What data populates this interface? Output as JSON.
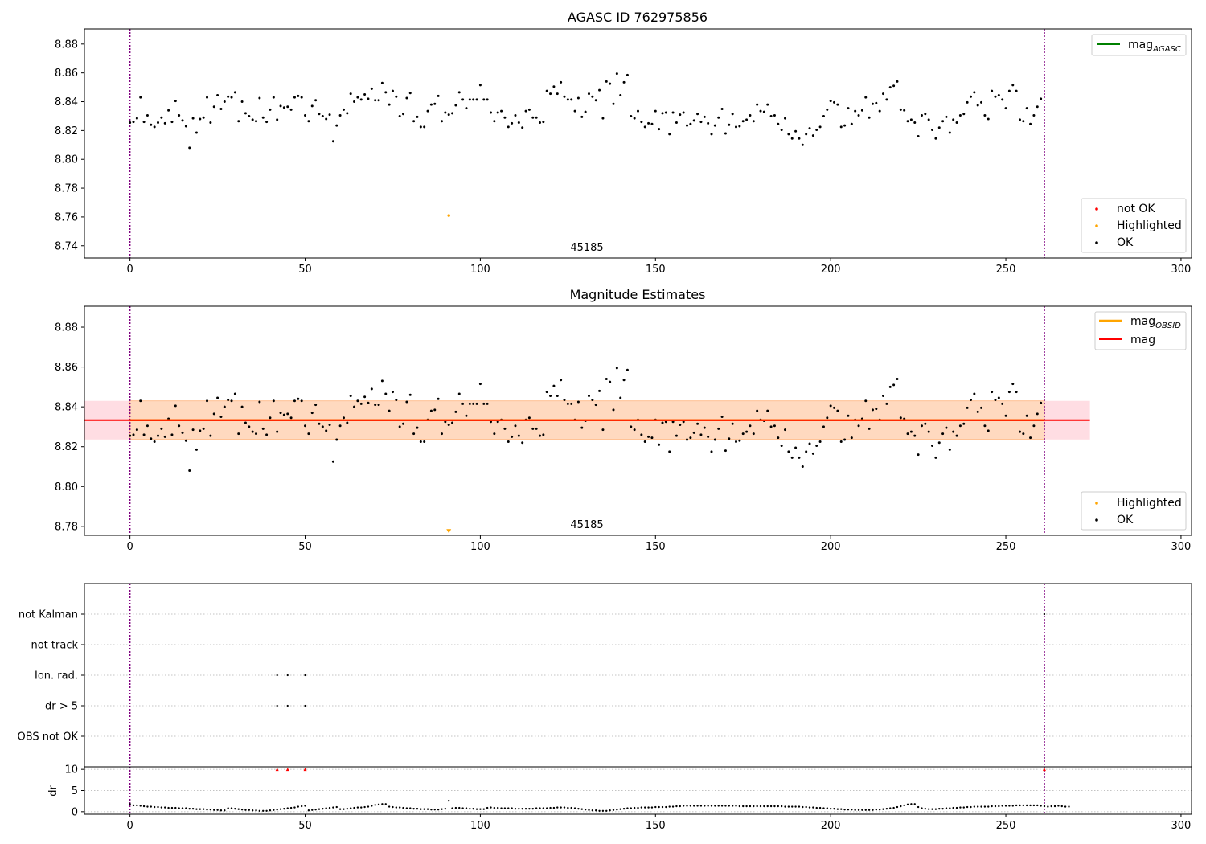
{
  "chart_data": [
    {
      "type": "scatter",
      "title": "AGASC ID 762975856",
      "xlim": [
        -13,
        303
      ],
      "ylim": [
        8.7315,
        8.8905
      ],
      "xticks": [
        0,
        50,
        100,
        150,
        200,
        250,
        300
      ],
      "yticks": [
        "8.74",
        "8.76",
        "8.78",
        "8.80",
        "8.82",
        "8.84",
        "8.86",
        "8.88"
      ],
      "vlines": [
        0,
        261
      ],
      "annotation": {
        "text": "45185",
        "x": 131,
        "y": 8.7336
      },
      "legend_upper": [
        {
          "label": "mag",
          "sub": "AGASC",
          "color": "#008000"
        }
      ],
      "legend_lower": [
        {
          "label": "not OK",
          "color": "#ff0000"
        },
        {
          "label": "Highlighted",
          "color": "#ffa500"
        },
        {
          "label": "OK",
          "color": "#000000"
        }
      ],
      "series": [
        {
          "name": "OK",
          "color": "#000000",
          "source": "mag"
        },
        {
          "name": "Highlighted",
          "color": "#ffa500",
          "points": [
            [
              91,
              8.761
            ]
          ]
        }
      ]
    },
    {
      "type": "scatter",
      "title": "Magnitude Estimates",
      "xlim": [
        -13,
        303
      ],
      "ylim": [
        8.7755,
        8.8905
      ],
      "xticks": [
        0,
        50,
        100,
        150,
        200,
        250,
        300
      ],
      "yticks": [
        "8.78",
        "8.80",
        "8.82",
        "8.84",
        "8.86",
        "8.88"
      ],
      "vlines": [
        0,
        261
      ],
      "annotation": {
        "text": "45185",
        "x": 131,
        "y": 8.7769
      },
      "mean_mag": 8.8333,
      "band": [
        8.8236,
        8.843
      ],
      "band_x": [
        -13,
        274
      ],
      "obsid_band_x": [
        0,
        261
      ],
      "legend_upper": [
        {
          "label": "mag",
          "sub": "OBSID",
          "color": "#ffa500"
        },
        {
          "label": "mag",
          "sub": "",
          "color": "#ff0000"
        }
      ],
      "legend_lower": [
        {
          "label": "Highlighted",
          "color": "#ffa500"
        },
        {
          "label": "OK",
          "color": "#000000"
        }
      ],
      "series": [
        {
          "name": "OK",
          "color": "#000000",
          "source": "mag"
        },
        {
          "name": "Highlighted",
          "color": "#ffa500",
          "marker": "triangle-down",
          "points": [
            [
              91,
              8.777
            ]
          ]
        }
      ]
    },
    {
      "type": "scatter",
      "xlim": [
        -13,
        303
      ],
      "categories": [
        "not Kalman",
        "not track",
        "Ion. rad.",
        "dr > 5",
        "OBS not OK"
      ],
      "vlines": [
        0,
        261
      ],
      "flags": [
        {
          "category": "not Kalman",
          "x": [
            261
          ]
        },
        {
          "category": "Ion. rad.",
          "x": [
            42,
            45,
            50
          ]
        },
        {
          "category": "dr > 5",
          "x": [
            42,
            45,
            50
          ]
        }
      ]
    },
    {
      "type": "scatter",
      "ylabel": "dr",
      "xlim": [
        -13,
        303
      ],
      "ylim": [
        -0.6,
        10.6
      ],
      "yticks": [
        "0",
        "5",
        "10"
      ],
      "xticks": [
        0,
        50,
        100,
        150,
        200,
        250,
        300
      ],
      "vlines": [
        0,
        261
      ],
      "clipped_points": {
        "y": 10,
        "x": [
          42,
          45,
          50,
          261
        ],
        "color": "#ff0000"
      },
      "dr": [
        1.8,
        1.5,
        1.5,
        1.4,
        1.3,
        1.2,
        1.2,
        1.1,
        1.1,
        1.0,
        1.0,
        0.9,
        0.9,
        0.9,
        0.8,
        0.8,
        0.8,
        0.7,
        0.7,
        0.6,
        0.6,
        0.6,
        0.5,
        0.5,
        0.4,
        0.4,
        0.3,
        0.3,
        0.8,
        0.8,
        0.7,
        0.6,
        0.5,
        0.4,
        0.4,
        0.3,
        0.3,
        0.2,
        0.2,
        0.2,
        0.3,
        0.4,
        0.5,
        0.6,
        0.7,
        0.8,
        0.9,
        1.0,
        1.2,
        1.3,
        1.4,
        0.3,
        0.4,
        0.5,
        0.6,
        0.7,
        0.8,
        0.9,
        1.0,
        1.1,
        0.6,
        0.6,
        0.7,
        0.8,
        0.9,
        1.0,
        1.0,
        1.1,
        1.2,
        1.4,
        1.6,
        1.7,
        1.8,
        1.8,
        1.2,
        1.1,
        1.0,
        1.0,
        0.9,
        0.8,
        0.8,
        0.7,
        0.7,
        0.6,
        0.6,
        0.6,
        0.5,
        0.5,
        0.5,
        0.6,
        0.7,
        2.6,
        0.8,
        0.9,
        0.9,
        0.8,
        0.8,
        0.7,
        0.7,
        0.6,
        0.6,
        0.6,
        0.9,
        1.0,
        0.9,
        0.9,
        0.8,
        0.8,
        0.8,
        0.8,
        0.7,
        0.7,
        0.7,
        0.7,
        0.7,
        0.7,
        0.8,
        0.8,
        0.8,
        0.8,
        0.9,
        0.9,
        1.0,
        1.0,
        1.0,
        0.9,
        0.9,
        0.8,
        0.7,
        0.6,
        0.5,
        0.4,
        0.3,
        0.3,
        0.2,
        0.2,
        0.2,
        0.3,
        0.4,
        0.5,
        0.6,
        0.7,
        0.8,
        0.8,
        0.9,
        0.9,
        1.0,
        1.0,
        1.0,
        1.0,
        1.1,
        1.1,
        1.1,
        1.1,
        1.2,
        1.2,
        1.3,
        1.3,
        1.4,
        1.4,
        1.4,
        1.4,
        1.4,
        1.4,
        1.4,
        1.4,
        1.4,
        1.4,
        1.4,
        1.4,
        1.4,
        1.4,
        1.4,
        1.4,
        1.3,
        1.3,
        1.3,
        1.3,
        1.3,
        1.3,
        1.3,
        1.3,
        1.3,
        1.3,
        1.3,
        1.3,
        1.3,
        1.2,
        1.2,
        1.2,
        1.2,
        1.2,
        1.1,
        1.1,
        1.0,
        1.0,
        0.9,
        0.9,
        0.8,
        0.8,
        0.7,
        0.7,
        0.6,
        0.6,
        0.5,
        0.5,
        0.5,
        0.4,
        0.4,
        0.4,
        0.4,
        0.4,
        0.4,
        0.5,
        0.5,
        0.6,
        0.7,
        0.8,
        0.9,
        1.1,
        1.3,
        1.5,
        1.7,
        1.8,
        1.8,
        1.1,
        0.8,
        0.7,
        0.6,
        0.6,
        0.6,
        0.7,
        0.7,
        0.8,
        0.8,
        0.9,
        0.9,
        1.0,
        1.0,
        1.1,
        1.1,
        1.2,
        1.2,
        1.2,
        1.2,
        1.2,
        1.3,
        1.3,
        1.3,
        1.4,
        1.4,
        1.4,
        1.4,
        1.5,
        1.5,
        1.5,
        1.5,
        1.5,
        1.5,
        1.5,
        1.4,
        1.3,
        1.2,
        1.3,
        1.3,
        1.4,
        1.3,
        1.2,
        1.2
      ],
      "mag": [
        8.8255,
        8.826,
        8.8285,
        8.843,
        8.826,
        8.8305,
        8.824,
        8.8225,
        8.8255,
        8.829,
        8.825,
        8.834,
        8.826,
        8.8405,
        8.8305,
        8.827,
        8.823,
        8.808,
        8.8285,
        8.8185,
        8.828,
        8.829,
        8.843,
        8.8255,
        8.8365,
        8.8445,
        8.835,
        8.84,
        8.8435,
        8.843,
        8.8465,
        8.8265,
        8.84,
        8.832,
        8.83,
        8.8275,
        8.8265,
        8.8425,
        8.829,
        8.826,
        8.8345,
        8.843,
        8.8275,
        8.837,
        8.836,
        8.8365,
        8.8345,
        8.843,
        8.844,
        8.843,
        8.8305,
        8.8265,
        8.837,
        8.841,
        8.8315,
        8.83,
        8.828,
        8.831,
        8.8125,
        8.8235,
        8.8305,
        8.8345,
        8.832,
        8.8455,
        8.84,
        8.843,
        8.8415,
        8.845,
        8.842,
        8.849,
        8.841,
        8.841,
        8.853,
        8.8465,
        8.838,
        8.8475,
        8.8435,
        8.83,
        8.8315,
        8.8425,
        8.846,
        8.8265,
        8.8295,
        8.8225,
        8.8225,
        8.8335,
        8.838,
        8.8385,
        8.844,
        8.8265,
        8.8325,
        8.831,
        8.832,
        8.8375,
        8.8465,
        8.8415,
        8.8355,
        8.8415,
        8.8415,
        8.8415,
        8.8515,
        8.8415,
        8.8415,
        8.8325,
        8.8265,
        8.8325,
        8.8335,
        8.829,
        8.8225,
        8.825,
        8.8305,
        8.8255,
        8.822,
        8.8335,
        8.8345,
        8.829,
        8.829,
        8.8255,
        8.826,
        8.8475,
        8.8455,
        8.8505,
        8.8455,
        8.8535,
        8.8435,
        8.8415,
        8.8415,
        8.8335,
        8.8425,
        8.8295,
        8.833,
        8.8455,
        8.8435,
        8.841,
        8.848,
        8.8285,
        8.854,
        8.8525,
        8.8385,
        8.8595,
        8.8445,
        8.8535,
        8.8585,
        8.83,
        8.8285,
        8.8335,
        8.826,
        8.8225,
        8.825,
        8.8245,
        8.8335,
        8.821,
        8.832,
        8.8325,
        8.8175,
        8.8325,
        8.8255,
        8.831,
        8.8325,
        8.8235,
        8.8245,
        8.827,
        8.8315,
        8.826,
        8.8295,
        8.825,
        8.8175,
        8.8235,
        8.829,
        8.835,
        8.818,
        8.824,
        8.8315,
        8.8225,
        8.823,
        8.8265,
        8.8275,
        8.8305,
        8.8265,
        8.838,
        8.8335,
        8.833,
        8.838,
        8.83,
        8.8305,
        8.8245,
        8.8205,
        8.8285,
        8.8175,
        8.8145,
        8.8195,
        8.8145,
        8.81,
        8.8175,
        8.8215,
        8.8165,
        8.8205,
        8.8225,
        8.83,
        8.8345,
        8.8405,
        8.8395,
        8.838,
        8.8225,
        8.8235,
        8.8355,
        8.8245,
        8.8335,
        8.8305,
        8.834,
        8.843,
        8.829,
        8.8385,
        8.839,
        8.8335,
        8.8455,
        8.8415,
        8.85,
        8.851,
        8.854,
        8.8345,
        8.834,
        8.8265,
        8.8275,
        8.8255,
        8.816,
        8.8305,
        8.8315,
        8.8275,
        8.8205,
        8.8145,
        8.822,
        8.8265,
        8.8295,
        8.8185,
        8.8275,
        8.8255,
        8.8305,
        8.8315,
        8.8395,
        8.8435,
        8.8465,
        8.8375,
        8.8395,
        8.8305,
        8.828,
        8.8475,
        8.8435,
        8.8445,
        8.8415,
        8.8355,
        8.8475,
        8.8515,
        8.8475,
        8.8275,
        8.8265,
        8.8355,
        8.8245,
        8.8305,
        8.8365,
        8.842
      ]
    }
  ]
}
